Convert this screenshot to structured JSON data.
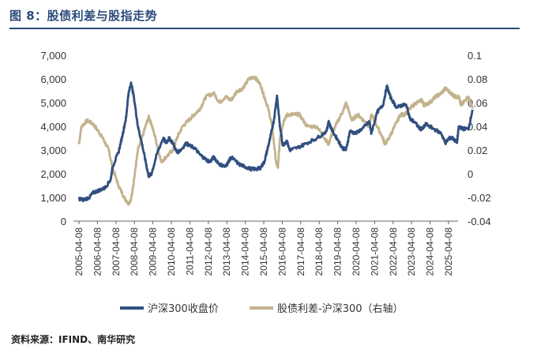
{
  "header": {
    "title": "图 8：股债利差与股指走势"
  },
  "footer": {
    "source": "资料来源：IFIND、南华研究"
  },
  "colors": {
    "title": "#2b4a7b",
    "csi300": "#304f7f",
    "spread": "#c3b38d"
  },
  "chart_data": {
    "type": "line",
    "title": "",
    "xlabel": "",
    "ylabel": "",
    "ylim": [
      0,
      7000
    ],
    "y2lim": [
      -0.04,
      0.1
    ],
    "yticks": [
      "0",
      "1,000",
      "2,000",
      "3,000",
      "4,000",
      "5,000",
      "6,000",
      "7,000"
    ],
    "y2ticks": [
      "-0.04",
      "-0.02",
      "0",
      "0.02",
      "0.04",
      "0.06",
      "0.08",
      "0.1"
    ],
    "xticks": [
      "2005-04-08",
      "2006-04-08",
      "2007-04-08",
      "2008-04-08",
      "2009-04-08",
      "2010-04-08",
      "2011-04-08",
      "2012-04-08",
      "2013-04-08",
      "2014-04-08",
      "2015-04-08",
      "2016-04-08",
      "2017-04-08",
      "2018-04-08",
      "2019-04-08",
      "2020-04-08",
      "2021-04-08",
      "2022-04-08",
      "2023-04-08",
      "2024-04-08",
      "2025-04-08"
    ],
    "grid": false,
    "legend": "bottom",
    "series": [
      {
        "name": "沪深300收盘价",
        "axis": "left",
        "x": [
          2005.27,
          2005.5,
          2005.8,
          2006.0,
          2006.3,
          2006.6,
          2006.9,
          2007.0,
          2007.3,
          2007.5,
          2007.7,
          2007.8,
          2007.95,
          2008.1,
          2008.3,
          2008.5,
          2008.7,
          2008.85,
          2009.0,
          2009.3,
          2009.6,
          2009.75,
          2009.9,
          2010.1,
          2010.3,
          2010.5,
          2010.8,
          2010.9,
          2011.2,
          2011.5,
          2011.8,
          2012.0,
          2012.2,
          2012.5,
          2012.8,
          2012.95,
          2013.1,
          2013.5,
          2013.8,
          2014.1,
          2014.4,
          2014.6,
          2014.8,
          2014.95,
          2015.1,
          2015.3,
          2015.45,
          2015.6,
          2015.75,
          2015.95,
          2016.1,
          2016.5,
          2017.0,
          2017.5,
          2018.0,
          2018.1,
          2018.3,
          2018.6,
          2018.8,
          2019.0,
          2019.2,
          2019.5,
          2019.9,
          2020.2,
          2020.3,
          2020.6,
          2020.9,
          2021.1,
          2021.3,
          2021.6,
          2021.9,
          2022.1,
          2022.3,
          2022.5,
          2022.8,
          2022.95,
          2023.1,
          2023.5,
          2023.9,
          2024.1,
          2024.3,
          2024.5,
          2024.7,
          2024.8,
          2025.0,
          2025.3,
          2025.5
        ],
        "values": [
          950,
          900,
          1000,
          1200,
          1300,
          1400,
          1750,
          2300,
          2900,
          3600,
          4400,
          5300,
          5850,
          5200,
          4000,
          3300,
          2500,
          1900,
          2000,
          2900,
          3500,
          3300,
          3500,
          3300,
          2900,
          3000,
          3300,
          3200,
          3100,
          2800,
          2600,
          2500,
          2700,
          2400,
          2300,
          2500,
          2700,
          2400,
          2300,
          2200,
          2200,
          2250,
          2500,
          3000,
          3500,
          4300,
          5300,
          4000,
          3200,
          3400,
          3000,
          3100,
          3300,
          3500,
          3800,
          4200,
          3800,
          3400,
          3100,
          3000,
          3800,
          3700,
          3950,
          4200,
          3700,
          4600,
          4900,
          5700,
          5200,
          4800,
          4900,
          4900,
          4300,
          4200,
          3900,
          3900,
          4100,
          3900,
          3700,
          3300,
          3500,
          3500,
          3300,
          4000,
          3900,
          3900,
          4700
        ]
      },
      {
        "name": "股债利差-沪深300（右轴）",
        "axis": "right",
        "x": [
          2005.27,
          2005.4,
          2005.7,
          2006.0,
          2006.3,
          2006.5,
          2006.8,
          2007.0,
          2007.3,
          2007.6,
          2007.8,
          2007.95,
          2008.1,
          2008.3,
          2008.6,
          2008.85,
          2009.0,
          2009.2,
          2009.5,
          2009.8,
          2010.1,
          2010.3,
          2010.6,
          2010.9,
          2011.2,
          2011.5,
          2011.8,
          2012.2,
          2012.5,
          2012.8,
          2013.1,
          2013.4,
          2013.7,
          2014.0,
          2014.3,
          2014.6,
          2014.8,
          2015.0,
          2015.2,
          2015.4,
          2015.5,
          2015.6,
          2015.8,
          2016.0,
          2016.3,
          2016.6,
          2017.0,
          2017.5,
          2017.9,
          2018.1,
          2018.3,
          2018.6,
          2018.9,
          2019.0,
          2019.3,
          2019.6,
          2019.9,
          2020.2,
          2020.3,
          2020.6,
          2020.9,
          2021.0,
          2021.2,
          2021.5,
          2021.8,
          2022.0,
          2022.3,
          2022.6,
          2022.9,
          2023.0,
          2023.3,
          2023.6,
          2023.9,
          2024.1,
          2024.4,
          2024.6,
          2024.8,
          2024.9,
          2025.0,
          2025.3,
          2025.5
        ],
        "values": [
          0.025,
          0.04,
          0.045,
          0.042,
          0.035,
          0.03,
          0.02,
          0.005,
          -0.01,
          -0.02,
          -0.025,
          -0.022,
          -0.005,
          0.02,
          0.035,
          0.048,
          0.042,
          0.03,
          0.01,
          0.015,
          0.02,
          0.03,
          0.04,
          0.045,
          0.05,
          0.055,
          0.065,
          0.068,
          0.06,
          0.065,
          0.062,
          0.07,
          0.072,
          0.08,
          0.082,
          0.075,
          0.065,
          0.055,
          0.04,
          0.01,
          0.005,
          0.03,
          0.045,
          0.05,
          0.05,
          0.05,
          0.04,
          0.04,
          0.03,
          0.025,
          0.035,
          0.045,
          0.055,
          0.06,
          0.045,
          0.05,
          0.045,
          0.04,
          0.05,
          0.04,
          0.03,
          0.025,
          0.03,
          0.04,
          0.05,
          0.05,
          0.055,
          0.06,
          0.062,
          0.058,
          0.06,
          0.065,
          0.068,
          0.072,
          0.068,
          0.065,
          0.065,
          0.058,
          0.06,
          0.065,
          0.055
        ]
      }
    ]
  }
}
